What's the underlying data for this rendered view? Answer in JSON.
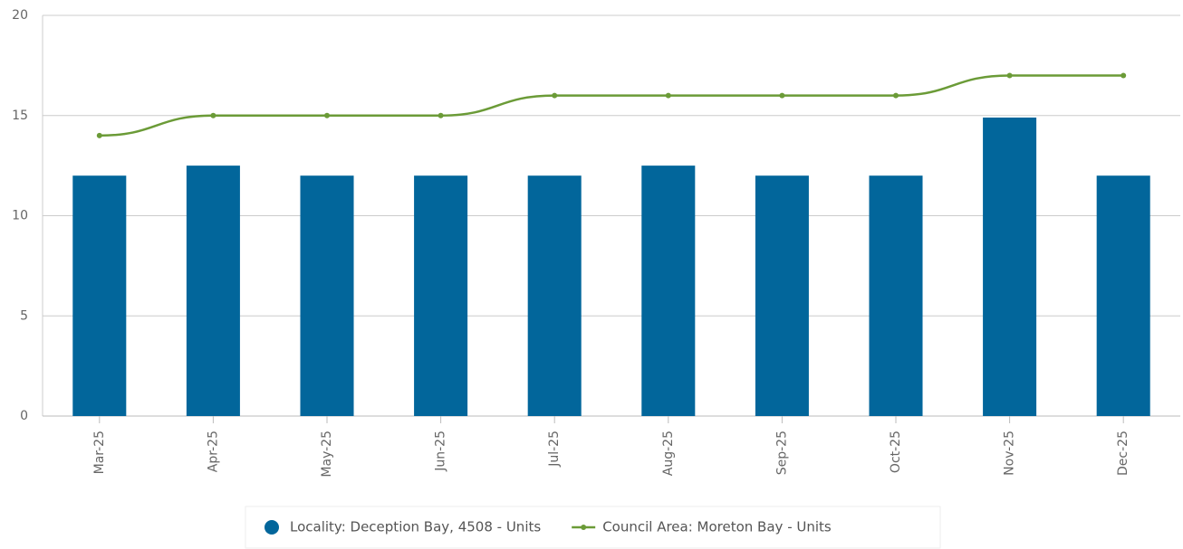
{
  "chart_data": {
    "type": "bar",
    "categories": [
      "Mar-25",
      "Apr-25",
      "May-25",
      "Jun-25",
      "Jul-25",
      "Aug-25",
      "Sep-25",
      "Oct-25",
      "Nov-25",
      "Dec-25"
    ],
    "series": [
      {
        "name": "Locality: Deception Bay, 4508 - Units",
        "type": "bar",
        "color": "#02669b",
        "values": [
          12,
          12.5,
          12,
          12,
          12,
          12.5,
          12,
          12,
          14.9,
          12
        ]
      },
      {
        "name": "Council Area: Moreton Bay - Units",
        "type": "line",
        "color": "#6b9b37",
        "values": [
          14,
          15,
          15,
          15,
          16,
          16,
          16,
          16,
          17,
          17
        ]
      }
    ],
    "ylim": [
      0,
      20
    ],
    "yticks": [
      0,
      5,
      10,
      15,
      20
    ],
    "grid": true
  }
}
